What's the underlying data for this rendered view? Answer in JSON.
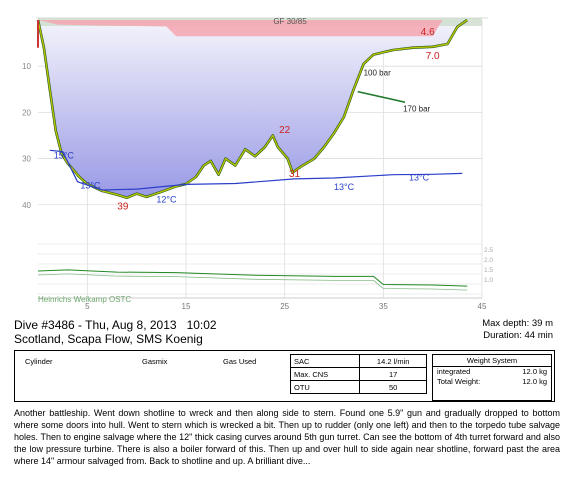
{
  "chart_data": {
    "type": "area",
    "x_unit": "min",
    "y_unit": "m",
    "xlim": [
      0,
      45
    ],
    "ylim": [
      0,
      42
    ],
    "x_ticks": [
      {
        "x": 5,
        "label": "5"
      },
      {
        "x": 15,
        "label": "15"
      },
      {
        "x": 25,
        "label": "25"
      },
      {
        "x": 35,
        "label": "35"
      },
      {
        "x": 45,
        "label": "45"
      }
    ],
    "y_ticks": [
      {
        "y": 10,
        "label": "10"
      },
      {
        "y": 20,
        "label": "20"
      },
      {
        "y": 30,
        "label": "30"
      },
      {
        "y": 40,
        "label": "40"
      }
    ],
    "depth_profile": [
      [
        0,
        0
      ],
      [
        0.6,
        6
      ],
      [
        1.2,
        15
      ],
      [
        1.8,
        24
      ],
      [
        2.4,
        29
      ],
      [
        3,
        31
      ],
      [
        4.2,
        34
      ],
      [
        5,
        35.5
      ],
      [
        6.5,
        37
      ],
      [
        8,
        37.8
      ],
      [
        9,
        38.5
      ],
      [
        10,
        37.6
      ],
      [
        11,
        38.3
      ],
      [
        12.5,
        37.2
      ],
      [
        14,
        36
      ],
      [
        15,
        35.5
      ],
      [
        16,
        34
      ],
      [
        16.8,
        31.5
      ],
      [
        17.5,
        30.5
      ],
      [
        18.3,
        33.5
      ],
      [
        19,
        30
      ],
      [
        20,
        31.5
      ],
      [
        21,
        28
      ],
      [
        22,
        29.5
      ],
      [
        23,
        27.5
      ],
      [
        23.8,
        25
      ],
      [
        24.3,
        27.5
      ],
      [
        25.3,
        30
      ],
      [
        25.8,
        33
      ],
      [
        26.6,
        31.8
      ],
      [
        28,
        30
      ],
      [
        29,
        27.5
      ],
      [
        30,
        24.5
      ],
      [
        31,
        21
      ],
      [
        32,
        15
      ],
      [
        33,
        9.5
      ],
      [
        34,
        7.5
      ],
      [
        36,
        6.5
      ],
      [
        38,
        6
      ],
      [
        40,
        5.8
      ],
      [
        41.5,
        5.2
      ],
      [
        42.5,
        1.5
      ],
      [
        43.5,
        0
      ]
    ],
    "ceiling": [
      [
        0,
        0
      ],
      [
        2,
        1
      ],
      [
        6,
        1.2
      ],
      [
        13,
        1.4
      ],
      [
        14,
        3.5
      ],
      [
        40,
        3.5
      ],
      [
        41,
        0
      ],
      [
        45,
        0
      ]
    ],
    "temperature": [
      [
        1.2,
        28.2
      ],
      [
        2.5,
        28.5
      ],
      [
        4,
        35
      ],
      [
        6.5,
        36.8
      ],
      [
        10,
        36.6
      ],
      [
        15,
        35.6
      ],
      [
        20,
        35.4
      ],
      [
        26,
        34.4
      ],
      [
        30,
        34.2
      ],
      [
        36,
        33.5
      ],
      [
        40,
        33.4
      ],
      [
        43,
        33.2
      ]
    ],
    "pressure": [
      [
        0,
        30
      ],
      [
        3,
        29.8
      ],
      [
        8,
        30.2
      ],
      [
        14,
        30.3
      ],
      [
        22,
        30.8
      ],
      [
        30,
        31
      ],
      [
        34,
        31
      ],
      [
        35,
        32.5
      ],
      [
        40,
        32.6
      ],
      [
        43.5,
        32.8
      ]
    ],
    "gas_scale_ticks": [
      "2.5",
      "2.0",
      "1.5",
      "1.0"
    ],
    "labels": {
      "top_label": "GF 30/85",
      "depth_markers": [
        {
          "text": "22",
          "x": 25,
          "y": 24.5,
          "color": "#cc2222"
        },
        {
          "text": "31",
          "x": 26,
          "y": 34,
          "color": "#cc2222"
        },
        {
          "text": "39",
          "x": 8.6,
          "y": 41,
          "color": "#cc2222"
        },
        {
          "text": "4.6",
          "x": 39.5,
          "y": 3.2,
          "color": "#cc2222"
        },
        {
          "text": "7.0",
          "x": 40,
          "y": 8.4,
          "color": "#cc2222"
        }
      ],
      "temp_labels": [
        {
          "text": "15°C",
          "x": 1.6,
          "y": 30
        },
        {
          "text": "13°C",
          "x": 4.3,
          "y": 36.5
        },
        {
          "text": "12°C",
          "x": 12,
          "y": 39.5
        },
        {
          "text": "13°C",
          "x": 30,
          "y": 36.8
        },
        {
          "text": "13°C",
          "x": 37.6,
          "y": 34.8
        }
      ],
      "pressure_labels": [
        {
          "text": "100 bar",
          "x": 33,
          "y": 12
        },
        {
          "text": "170 bar",
          "x": 37,
          "y": 19.8
        }
      ],
      "watermark": "Heinrichs Weikamp OSTC"
    },
    "colors": {
      "profile_fill_top": "#f4f4fb",
      "profile_fill_bottom": "#9999e6",
      "depth_line": "#bcc400",
      "ceiling_fill": "#f4a6b0",
      "gf_band": "#ccdccc",
      "temperature_line": "#2b3fc9",
      "pressure_line": "#228822",
      "marker_red": "#cc2222"
    }
  },
  "dive": {
    "title": "Dive #3486 - Thu, Aug 8, 2013   10:02",
    "location": "Scotland, Scapa Flow, SMS Koenig",
    "max_depth": "Max depth: 39 m",
    "duration": "Duration: 44 min"
  },
  "gas_table": {
    "headers": [
      "Cylinder",
      "Gasmix",
      "Gas Used"
    ]
  },
  "stats": {
    "sac_label": "SAC",
    "sac_value": "14.2 l/min",
    "cns_label": "Max. CNS",
    "cns_value": "17",
    "otu_label": "OTU",
    "otu_value": "50"
  },
  "weight": {
    "title": "Weight System",
    "rows": [
      {
        "label": "integrated",
        "value": "12.0 kg"
      },
      {
        "label": "Total Weight:",
        "value": "12.0 kg"
      }
    ]
  },
  "notes": "Another battleship. Went down shotline to wreck and then along side to stern. Found one 5.9\" gun and gradually dropped to bottom where some doors into hull. Went to stern which is wrecked a bit. Then up to rudder (only one left) and then to the torpedo tube salvage holes. Then to engine salvage where the 12\" thick casing curves around 5th gun turret. Can see the bottom of 4th turret forward and also the low pressure turbine. There is also a boiler forward of this. Then up and over hull to side again near shotline, forward past the area where 14\" armour salvaged from. Back to shotline and up. A brilliant dive..."
}
